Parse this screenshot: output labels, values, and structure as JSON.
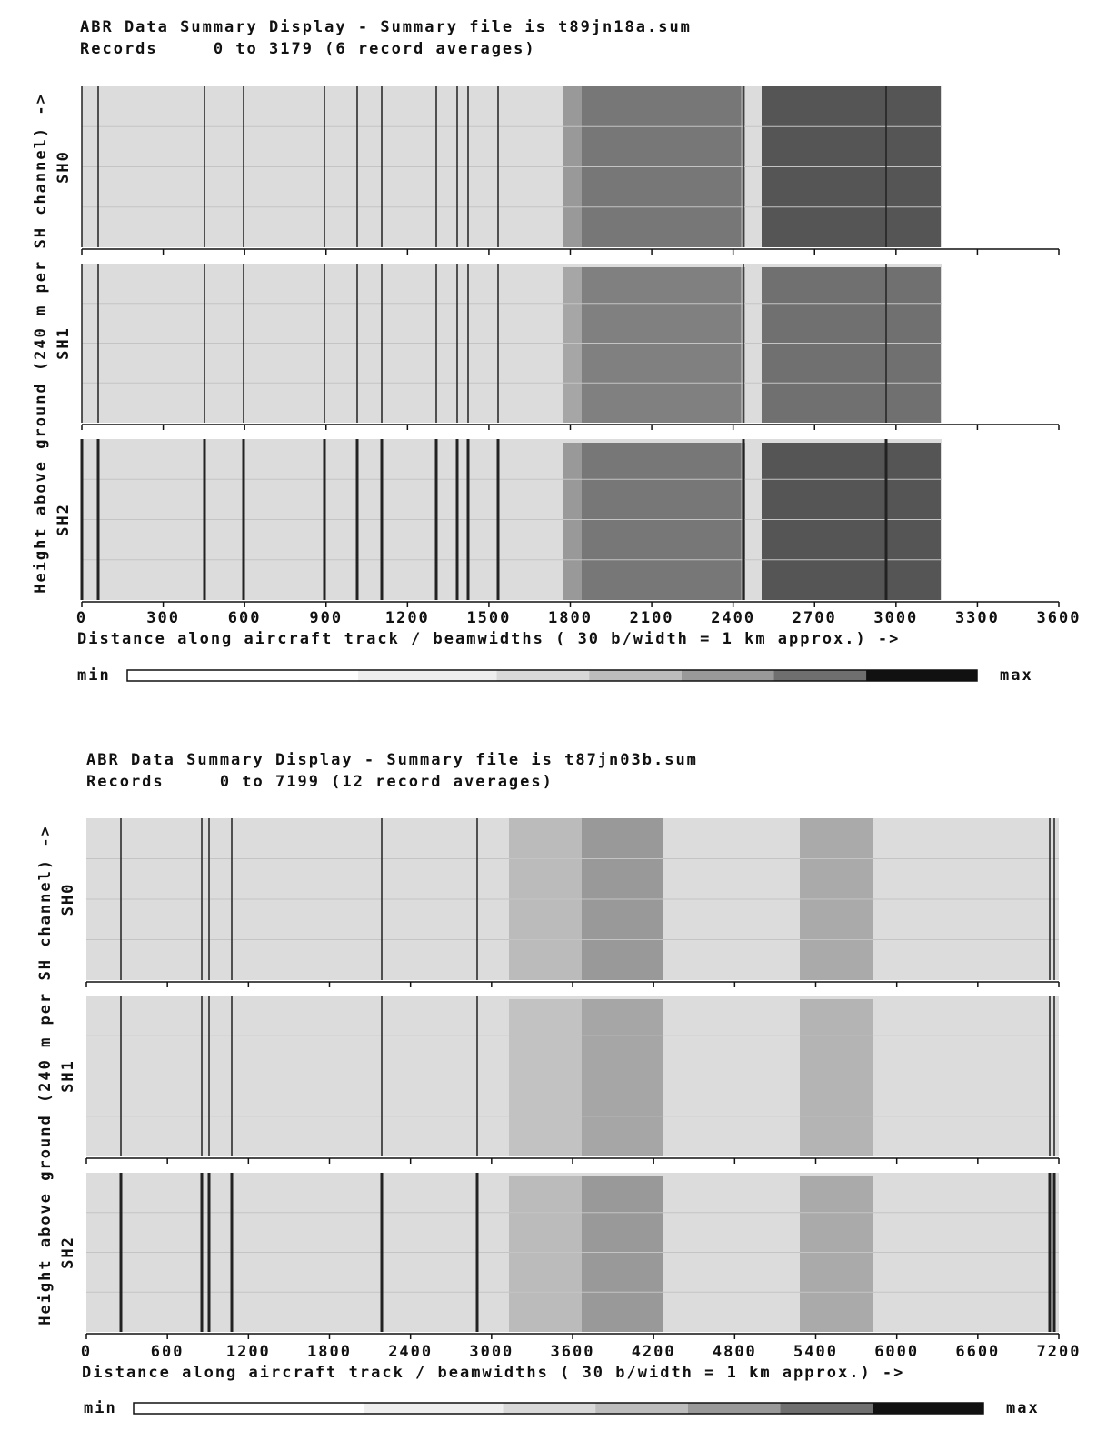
{
  "chart_data": [
    {
      "type": "heatmap",
      "title": "ABR Data Summary Display - Summary file is t89jn18a.sum",
      "subtitle": "Records     0 to 3179 (6 record averages)",
      "y_label": "Height above ground (240 m per SH channel) ->",
      "panels": [
        "SH0",
        "SH1",
        "SH2"
      ],
      "x_label": "Distance along aircraft track / beamwidths ( 30 b/width = 1 km approx.) ->",
      "xlim": [
        0,
        3600
      ],
      "xticks": [
        0,
        300,
        600,
        900,
        1200,
        1500,
        1800,
        2100,
        2400,
        2700,
        3000,
        3300,
        3600
      ],
      "colorbar": {
        "min_label": "min",
        "max_label": "max"
      }
    },
    {
      "type": "heatmap",
      "title": "ABR Data Summary Display - Summary file is t87jn03b.sum",
      "subtitle": "Records     0 to 7199 (12 record averages)",
      "y_label": "Height above ground (240 m per SH channel) ->",
      "panels": [
        "SH0",
        "SH1",
        "SH2"
      ],
      "x_label": "Distance along aircraft track / beamwidths ( 30 b/width = 1 km approx.) ->",
      "xlim": [
        0,
        7200
      ],
      "xticks": [
        0,
        600,
        1200,
        1800,
        2400,
        3000,
        3600,
        4200,
        4800,
        5400,
        6000,
        6600,
        7200
      ],
      "colorbar": {
        "min_label": "min",
        "max_label": "max"
      }
    }
  ]
}
